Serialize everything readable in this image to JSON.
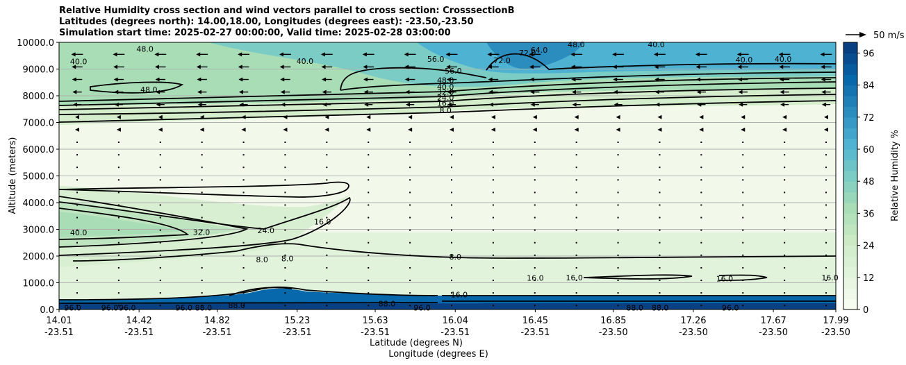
{
  "chart_data": {
    "type": "heatmap",
    "title_lines": [
      "Relative Humidity cross section and wind vectors parallel to cross section: CrosssectionB",
      "Latitudes (degrees north): 14.00,18.00, Longitudes (degrees east): -23.50,-23.50",
      "Simulation start time: 2025-02-27 00:00:00, Valid time: 2025-02-28 03:00:00"
    ],
    "xlabel_lat": "Latitude (degrees N)",
    "xlabel_lon": "Longitude (degrees E)",
    "ylabel": "Altitude (meters)",
    "colorbar_label": "Relative Humidity %",
    "quiver_key": "50 m/s",
    "x_range": [
      14.01,
      17.99
    ],
    "ylim": [
      0,
      10000
    ],
    "grid": true,
    "x_ticks": [
      {
        "lat": "14.01",
        "lon": "-23.51",
        "value": 14.01
      },
      {
        "lat": "14.42",
        "lon": "-23.51",
        "value": 14.42
      },
      {
        "lat": "14.82",
        "lon": "-23.51",
        "value": 14.82
      },
      {
        "lat": "15.23",
        "lon": "-23.51",
        "value": 15.23
      },
      {
        "lat": "15.63",
        "lon": "-23.51",
        "value": 15.63
      },
      {
        "lat": "16.04",
        "lon": "-23.51",
        "value": 16.04
      },
      {
        "lat": "16.45",
        "lon": "-23.51",
        "value": 16.45
      },
      {
        "lat": "16.85",
        "lon": "-23.50",
        "value": 16.85
      },
      {
        "lat": "17.26",
        "lon": "-23.50",
        "value": 17.26
      },
      {
        "lat": "17.67",
        "lon": "-23.50",
        "value": 17.67
      },
      {
        "lat": "17.99",
        "lon": "-23.50",
        "value": 17.99
      }
    ],
    "y_ticks": [
      "0.0",
      "1000.0",
      "2000.0",
      "3000.0",
      "4000.0",
      "5000.0",
      "6000.0",
      "7000.0",
      "8000.0",
      "9000.0",
      "10000.0"
    ],
    "colorbar_ticks": [
      "0",
      "12",
      "24",
      "36",
      "48",
      "60",
      "72",
      "84",
      "96"
    ],
    "colorbar_range": [
      0,
      100
    ],
    "colorbar_colors": [
      "#f7fcf0",
      "#e0f3db",
      "#ccebc5",
      "#a8ddb5",
      "#7bccc4",
      "#4eb3d3",
      "#2b8cbe",
      "#0868ac",
      "#084081"
    ],
    "contour_labels": [
      {
        "text": "48.0",
        "x": 14.45,
        "y": 9750
      },
      {
        "text": "40.0",
        "x": 14.11,
        "y": 9280
      },
      {
        "text": "40.0",
        "x": 15.27,
        "y": 9300
      },
      {
        "text": "48.0",
        "x": 14.47,
        "y": 8240
      },
      {
        "text": "56.0",
        "x": 15.94,
        "y": 9380
      },
      {
        "text": "56.0",
        "x": 16.03,
        "y": 8930
      },
      {
        "text": "72.0",
        "x": 16.28,
        "y": 9320
      },
      {
        "text": "72.0",
        "x": 16.41,
        "y": 9610
      },
      {
        "text": "64.0",
        "x": 16.47,
        "y": 9720
      },
      {
        "text": "48.0",
        "x": 16.66,
        "y": 9920
      },
      {
        "text": "40.0",
        "x": 17.07,
        "y": 9920
      },
      {
        "text": "40.0",
        "x": 17.52,
        "y": 9350
      },
      {
        "text": "40.0",
        "x": 17.72,
        "y": 9380
      },
      {
        "text": "48.0",
        "x": 15.99,
        "y": 8590
      },
      {
        "text": "40.0",
        "x": 15.99,
        "y": 8340
      },
      {
        "text": "32.0",
        "x": 15.99,
        "y": 8140
      },
      {
        "text": "24.0",
        "x": 15.99,
        "y": 7940
      },
      {
        "text": "16.0",
        "x": 15.99,
        "y": 7730
      },
      {
        "text": "8.0",
        "x": 15.99,
        "y": 7460
      },
      {
        "text": "40.0",
        "x": 14.11,
        "y": 2880
      },
      {
        "text": "32.0",
        "x": 14.74,
        "y": 2900
      },
      {
        "text": "24.0",
        "x": 15.07,
        "y": 2960
      },
      {
        "text": "16.0",
        "x": 15.36,
        "y": 3290
      },
      {
        "text": "8.0",
        "x": 15.05,
        "y": 1870
      },
      {
        "text": "8.0",
        "x": 15.18,
        "y": 1910
      },
      {
        "text": "8.0",
        "x": 16.04,
        "y": 1980
      },
      {
        "text": "16.0",
        "x": 16.45,
        "y": 1180
      },
      {
        "text": "16.0",
        "x": 16.65,
        "y": 1200
      },
      {
        "text": "16.0",
        "x": 17.42,
        "y": 1150
      },
      {
        "text": "16.0",
        "x": 17.96,
        "y": 1200
      },
      {
        "text": "16.0",
        "x": 16.06,
        "y": 560
      },
      {
        "text": "88.0",
        "x": 15.69,
        "y": 220
      },
      {
        "text": "96.0",
        "x": 15.87,
        "y": 60
      },
      {
        "text": "88.0",
        "x": 16.96,
        "y": 60
      },
      {
        "text": "88.0",
        "x": 17.09,
        "y": 60
      },
      {
        "text": "96.0",
        "x": 17.45,
        "y": 60
      },
      {
        "text": "96.0",
        "x": 14.08,
        "y": 60
      },
      {
        "text": "96.0",
        "x": 14.27,
        "y": 60
      },
      {
        "text": "96.0",
        "x": 14.36,
        "y": 60
      },
      {
        "text": "96.0",
        "x": 14.65,
        "y": 60
      },
      {
        "text": "88.0",
        "x": 14.75,
        "y": 60
      },
      {
        "text": "88.0",
        "x": 14.92,
        "y": 160
      }
    ]
  }
}
